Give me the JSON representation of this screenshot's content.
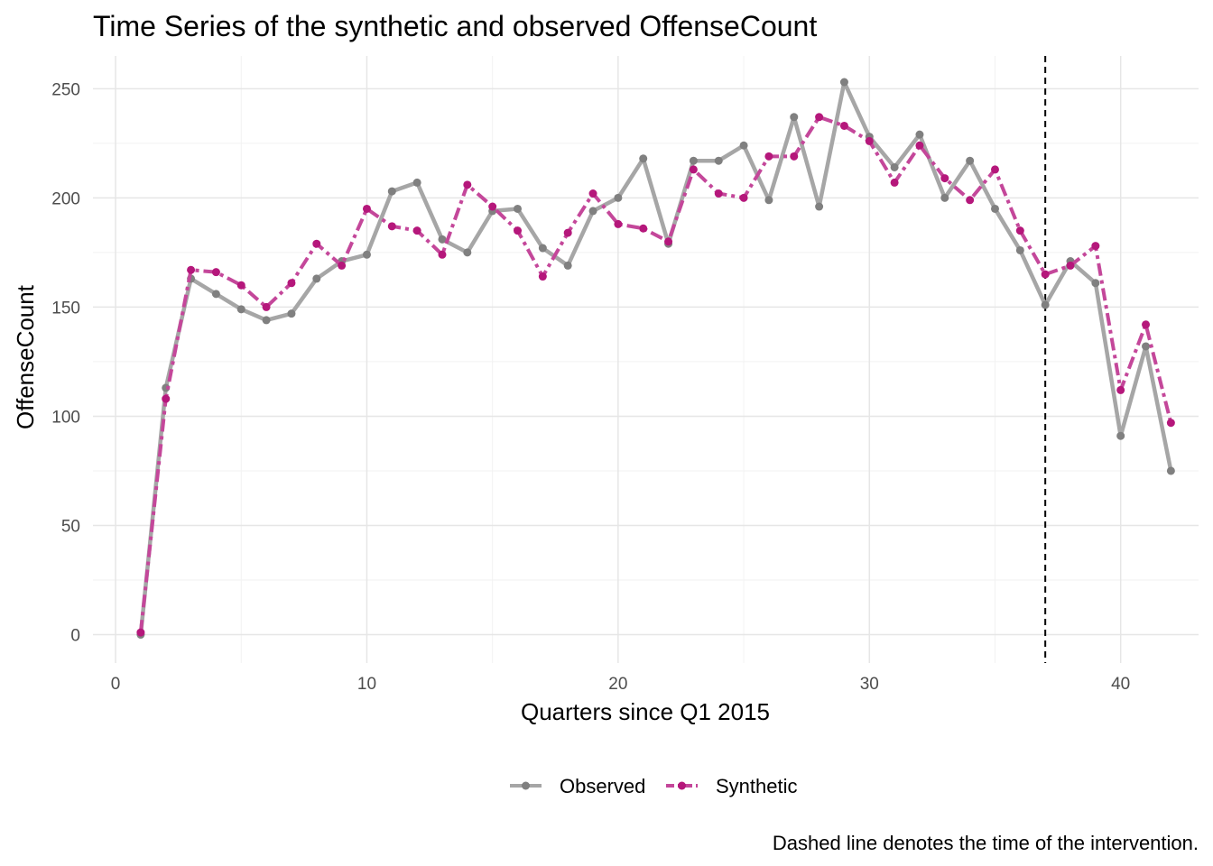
{
  "chart_data": {
    "type": "line",
    "title": "Time Series of the synthetic and observed OffenseCount",
    "xlabel": "Quarters since Q1 2015",
    "ylabel": "OffenseCount",
    "caption": "Dashed line denotes the time of the intervention.",
    "xlim": [
      -0.9,
      43.1
    ],
    "ylim": [
      -13,
      265
    ],
    "x_ticks": [
      0,
      10,
      20,
      30,
      40
    ],
    "x_tick_labels": [
      "0",
      "10",
      "20",
      "30",
      "40"
    ],
    "y_ticks": [
      0,
      50,
      100,
      150,
      200,
      250
    ],
    "y_tick_labels": [
      "0",
      "50",
      "100",
      "150",
      "200",
      "250"
    ],
    "grid": true,
    "legend_position": "bottom",
    "intervention_x": 37,
    "x": [
      1,
      2,
      3,
      4,
      5,
      6,
      7,
      8,
      9,
      10,
      11,
      12,
      13,
      14,
      15,
      16,
      17,
      18,
      19,
      20,
      21,
      22,
      23,
      24,
      25,
      26,
      27,
      28,
      29,
      30,
      31,
      32,
      33,
      34,
      35,
      36,
      37,
      38,
      39,
      40,
      41,
      42
    ],
    "series": [
      {
        "name": "Observed",
        "color": "#808080",
        "line_color": "#a6a6a6",
        "style": "solid",
        "values": [
          0,
          113,
          163,
          156,
          149,
          144,
          147,
          163,
          171,
          174,
          203,
          207,
          181,
          175,
          194,
          195,
          177,
          169,
          194,
          200,
          218,
          179,
          217,
          217,
          224,
          199,
          237,
          196,
          253,
          228,
          214,
          229,
          200,
          217,
          195,
          176,
          151,
          171,
          161,
          91,
          132,
          75
        ]
      },
      {
        "name": "Synthetic",
        "color": "#b5177b",
        "line_color": "#c4479a",
        "style": "dashed",
        "values": [
          1,
          108,
          167,
          166,
          160,
          150,
          161,
          179,
          169,
          195,
          187,
          185,
          174,
          206,
          196,
          185,
          164,
          184,
          202,
          188,
          186,
          180,
          213,
          202,
          200,
          219,
          219,
          237,
          233,
          226,
          207,
          224,
          209,
          199,
          213,
          185,
          165,
          169,
          178,
          112,
          142,
          97
        ]
      }
    ]
  }
}
